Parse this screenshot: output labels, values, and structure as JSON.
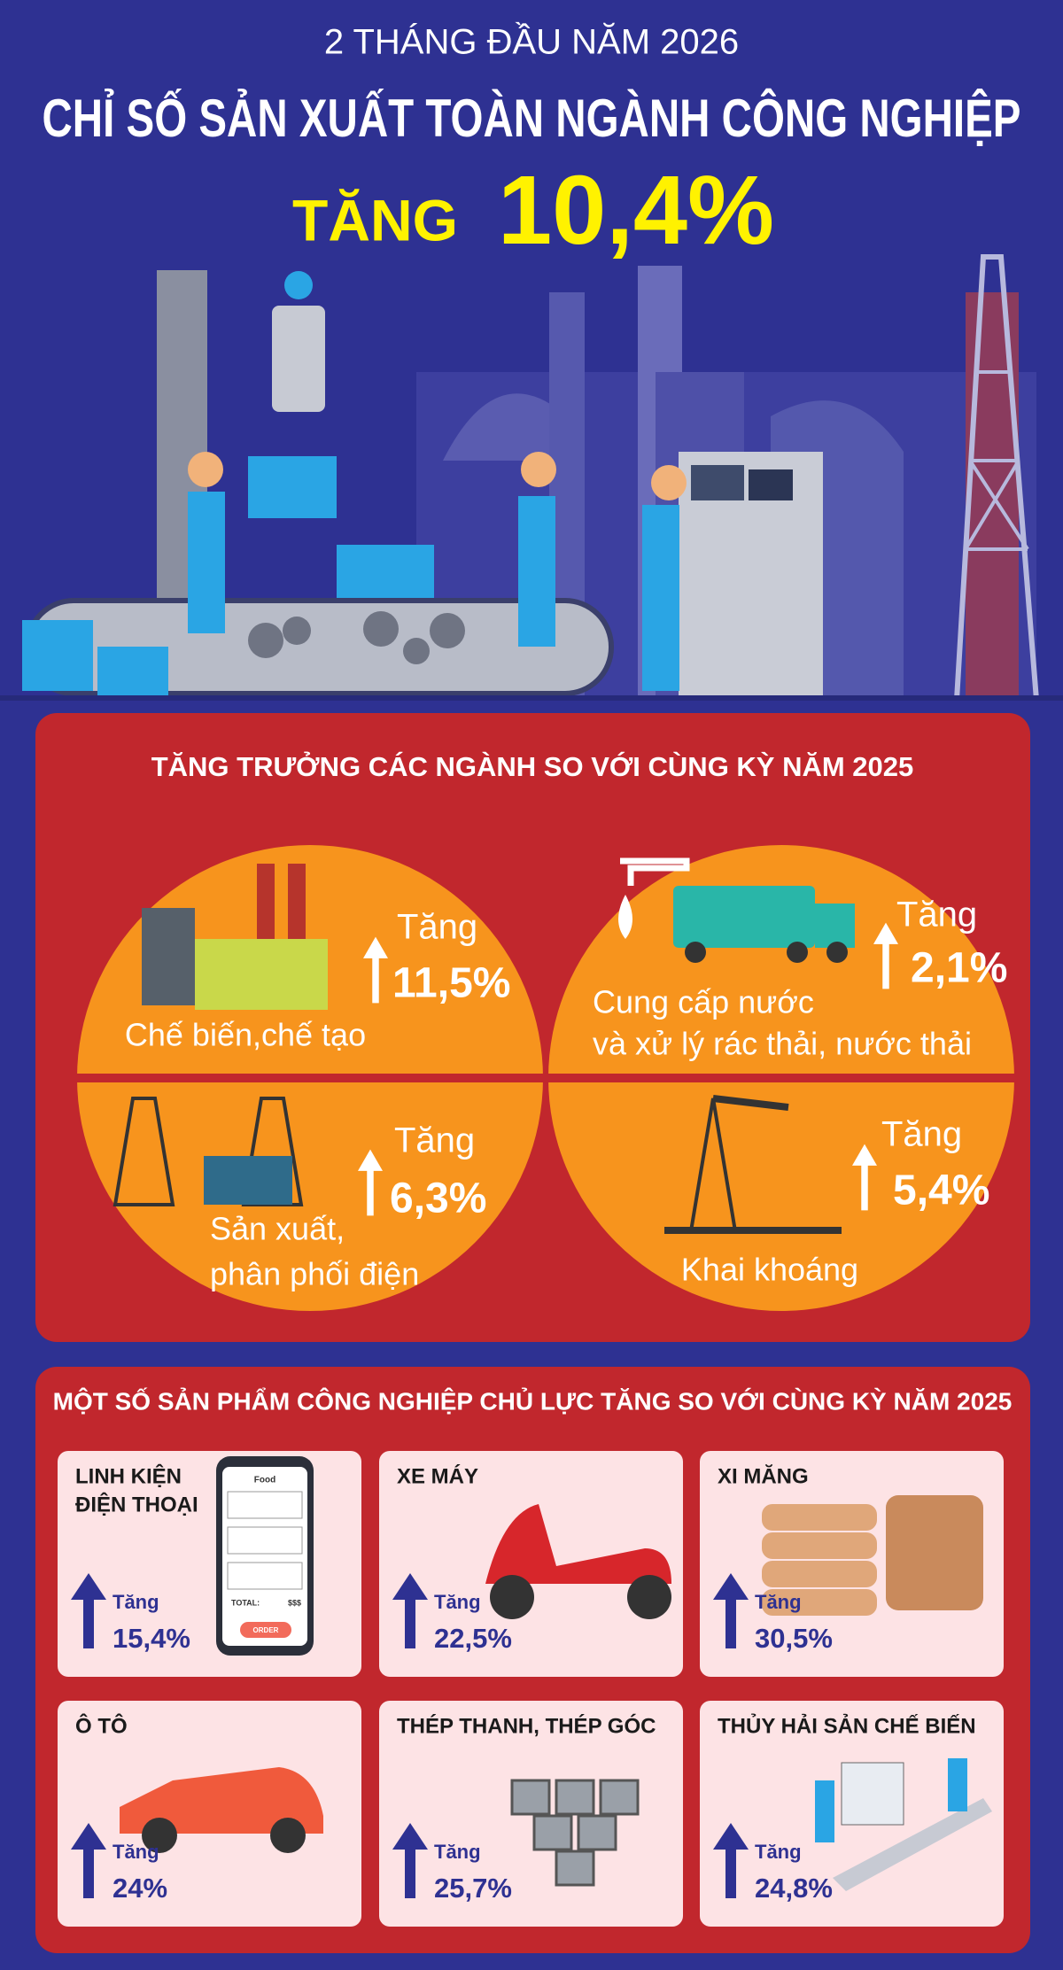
{
  "header": {
    "subtitle": "2 THÁNG ĐẦU NĂM 2026",
    "title": "CHỈ SỐ SẢN XUẤT TOÀN NGÀNH CÔNG NGHIỆP",
    "highlight_prefix": "TĂNG",
    "highlight_value": "10,4%"
  },
  "sectors": {
    "title": "TĂNG TRƯỞNG CÁC NGÀNH SO VỚI CÙNG KỲ NĂM 2025",
    "items": [
      {
        "name_lines": [
          "Chế biến,chế tạo"
        ],
        "label": "Tăng",
        "value": "11,5%"
      },
      {
        "name_lines": [
          "Cung cấp nước",
          "và xử lý rác thải, nước thải"
        ],
        "label": "Tăng",
        "value": "2,1%"
      },
      {
        "name_lines": [
          "Sản xuất,",
          "phân phối điện"
        ],
        "label": "Tăng",
        "value": "6,3%"
      },
      {
        "name_lines": [
          "Khai khoáng"
        ],
        "label": "Tăng",
        "value": "5,4%"
      }
    ]
  },
  "products": {
    "title": "MỘT SỐ SẢN PHẨM CÔNG NGHIỆP CHỦ LỰC TĂNG SO VỚI CÙNG KỲ NĂM 2025",
    "items": [
      {
        "name_lines": [
          "LINH KIỆN",
          "ĐIỆN THOẠI"
        ],
        "label": "Tăng",
        "value": "15,4%"
      },
      {
        "name_lines": [
          "XE MÁY"
        ],
        "label": "Tăng",
        "value": "22,5%"
      },
      {
        "name_lines": [
          "XI MĂNG"
        ],
        "label": "Tăng",
        "value": "30,5%"
      },
      {
        "name_lines": [
          "Ô TÔ"
        ],
        "label": "Tăng",
        "value": "24%"
      },
      {
        "name_lines": [
          "THÉP THANH, THÉP GÓC"
        ],
        "label": "Tăng",
        "value": "25,7%"
      },
      {
        "name_lines": [
          "THỦY HẢI SẢN CHẾ BIẾN"
        ],
        "label": "Tăng",
        "value": "24,8%"
      }
    ],
    "phone_screen": {
      "header": "Food",
      "total": "TOTAL:",
      "price": "$$$",
      "button": "ORDER"
    }
  }
}
